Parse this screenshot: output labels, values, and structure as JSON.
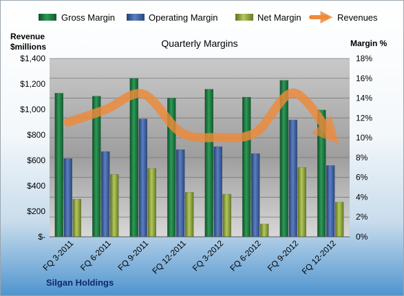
{
  "chart_data": {
    "type": "bar",
    "title": "Quarterly Margins",
    "company": "Silgan Holdings",
    "categories": [
      "FQ 3-2011",
      "FQ 6-2011",
      "FQ 9-2011",
      "FQ 12-2011",
      "FQ 3-2012",
      "FQ 6-2012",
      "FQ 9-2012",
      "FQ 12-2012"
    ],
    "series": [
      {
        "name": "Gross Margin",
        "values": [
          14.5,
          14.2,
          16.0,
          14.0,
          14.9,
          14.1,
          15.8,
          12.8
        ],
        "color": "#1f7a45"
      },
      {
        "name": "Operating Margin",
        "values": [
          7.9,
          8.6,
          11.9,
          8.8,
          9.1,
          8.4,
          11.8,
          7.2
        ],
        "color": "#3d5e9e"
      },
      {
        "name": "Net Margin",
        "values": [
          3.8,
          6.3,
          6.9,
          4.5,
          4.3,
          1.3,
          7.0,
          3.5
        ],
        "color": "#8ea33d"
      }
    ],
    "line_series": {
      "name": "Revenues",
      "values": [
        900,
        1000,
        1120,
        820,
        780,
        820,
        1130,
        800
      ],
      "color": "#ee8a3a"
    },
    "left_axis": {
      "label_line1": "Revenue",
      "label_line2": "$millions",
      "min": 0,
      "max": 1400,
      "ticks": [
        "$-",
        "$200",
        "$400",
        "$600",
        "$800",
        "$1,000",
        "$1,200",
        "$1,400"
      ]
    },
    "right_axis": {
      "label": "Margin %",
      "min": 0,
      "max": 18,
      "ticks": [
        "0%",
        "2%",
        "4%",
        "6%",
        "8%",
        "10%",
        "12%",
        "14%",
        "16%",
        "18%"
      ]
    },
    "grid": true,
    "legend_position": "top"
  }
}
